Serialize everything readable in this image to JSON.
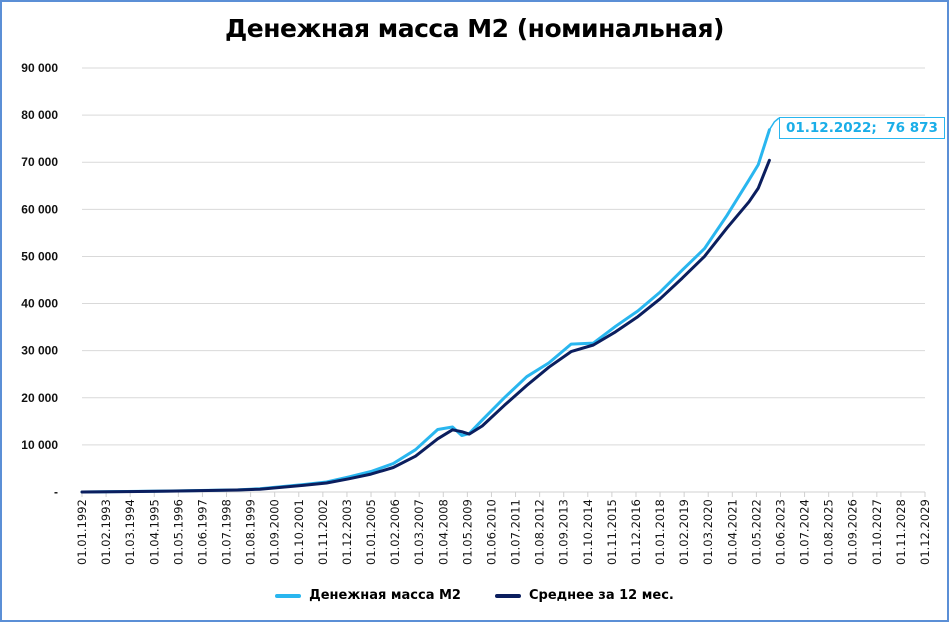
{
  "chart_data": {
    "type": "line",
    "title": "Денежная масса М2 (номинальная)",
    "xlabel": "",
    "ylabel": "",
    "ylim": [
      0,
      90000
    ],
    "yticks": [
      0,
      10000,
      20000,
      30000,
      40000,
      50000,
      60000,
      70000,
      80000,
      90000
    ],
    "ytick_labels": [
      "-",
      "10 000",
      "20 000",
      "30 000",
      "40 000",
      "50 000",
      "60 000",
      "70 000",
      "80 000",
      "90 000"
    ],
    "xtick_labels": [
      "01.01.1992",
      "01.02.1993",
      "01.03.1994",
      "01.04.1995",
      "01.05.1996",
      "01.06.1997",
      "01.07.1998",
      "01.08.1999",
      "01.09.2000",
      "01.10.2001",
      "01.11.2002",
      "01.12.2003",
      "01.01.2005",
      "01.02.2006",
      "01.03.2007",
      "01.04.2008",
      "01.05.2009",
      "01.06.2010",
      "01.07.2011",
      "01.08.2012",
      "01.09.2013",
      "01.10.2014",
      "01.11.2015",
      "01.12.2016",
      "01.01.2018",
      "01.02.2019",
      "01.03.2020",
      "01.04.2021",
      "01.05.2022",
      "01.06.2023",
      "01.07.2024",
      "01.08.2025",
      "01.09.2026",
      "01.10.2027",
      "01.11.2028",
      "01.12.2029"
    ],
    "grid": true,
    "legend_position": "bottom",
    "x": [
      "1992-01",
      "1994-01",
      "1996-01",
      "1998-01",
      "1999-01",
      "2000-01",
      "2001-01",
      "2002-01",
      "2003-01",
      "2004-01",
      "2005-01",
      "2006-01",
      "2007-01",
      "2008-01",
      "2008-09",
      "2009-02",
      "2009-06",
      "2010-01",
      "2011-01",
      "2012-01",
      "2013-01",
      "2014-01",
      "2015-01",
      "2016-01",
      "2017-01",
      "2018-01",
      "2019-01",
      "2020-01",
      "2021-01",
      "2022-01",
      "2022-06",
      "2022-12"
    ],
    "series": [
      {
        "name": "Денежная масса М2",
        "color": "#29b6ef",
        "values": [
          10,
          100,
          220,
          370,
          450,
          710,
          1150,
          1600,
          2130,
          3210,
          4360,
          6050,
          8970,
          13270,
          13800,
          12000,
          12400,
          15270,
          20010,
          24480,
          27400,
          31400,
          31600,
          35180,
          38420,
          42440,
          47100,
          51660,
          58650,
          66250,
          69500,
          76873
        ]
      },
      {
        "name": "Среднее за 12 мес.",
        "color": "#0b1e5e",
        "values": [
          5,
          80,
          190,
          330,
          420,
          600,
          1000,
          1420,
          1900,
          2800,
          3800,
          5200,
          7600,
          11300,
          13200,
          12800,
          12300,
          14000,
          18400,
          22600,
          26500,
          29800,
          31200,
          34000,
          37200,
          41000,
          45400,
          50000,
          56000,
          61600,
          64500,
          70400
        ]
      }
    ],
    "annotations": [
      {
        "text": "01.12.2022;  76 873",
        "x": "2022-12",
        "y": 76873
      }
    ]
  },
  "title": "Денежная масса М2 (номинальная)",
  "legend": {
    "items": [
      {
        "label": "Денежная масса М2",
        "color": "#29b6ef"
      },
      {
        "label": "Среднее за 12 мес.",
        "color": "#0b1e5e"
      }
    ]
  },
  "annotation": {
    "label": "01.12.2022;  76 873"
  },
  "colors": {
    "frame": "#5b8fd6",
    "m2": "#29b6ef",
    "avg": "#0b1e5e",
    "grid": "#d9d9d9"
  }
}
